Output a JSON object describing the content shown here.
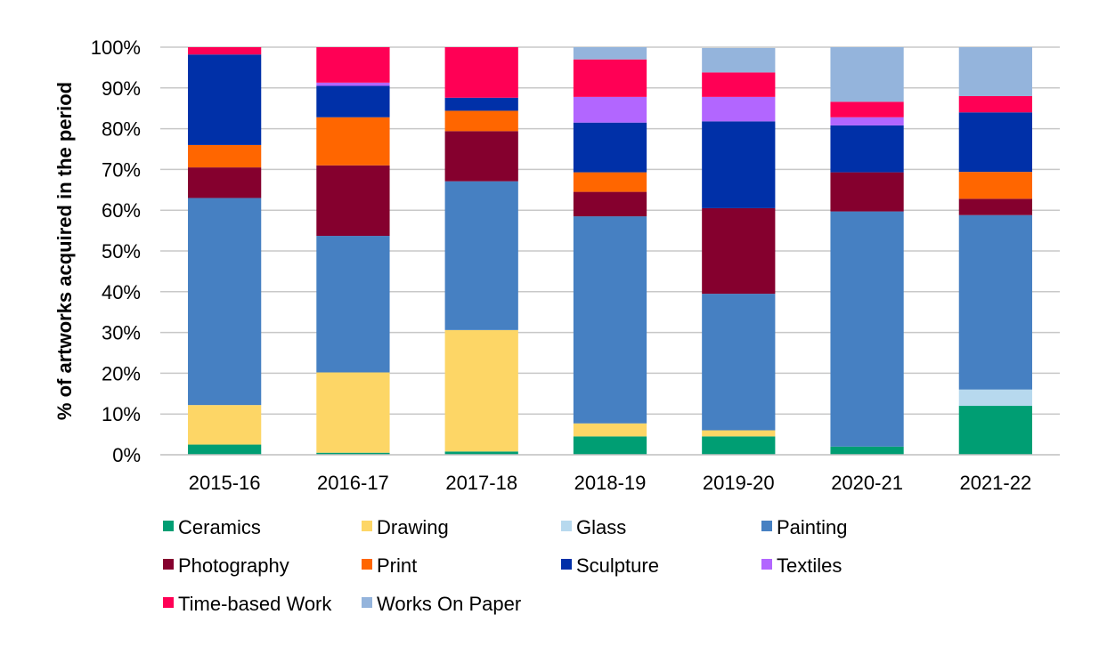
{
  "chart_data": {
    "type": "bar",
    "stacked": true,
    "ylabel": "% of artworks acquired in the period",
    "xlabel": "",
    "ylim": [
      0,
      100
    ],
    "yticks": [
      "0%",
      "10%",
      "20%",
      "30%",
      "40%",
      "50%",
      "60%",
      "70%",
      "80%",
      "90%",
      "100%"
    ],
    "grid": true,
    "legend_position": "bottom",
    "categories": [
      "2015-16",
      "2016-17",
      "2017-18",
      "2018-19",
      "2019-20",
      "2020-21",
      "2021-22"
    ],
    "series": [
      {
        "name": "Ceramics",
        "color": "#009E73",
        "values": [
          2.5,
          0.5,
          0.8,
          4.5,
          4.5,
          2.0,
          12.0
        ]
      },
      {
        "name": "Drawing",
        "color": "#FDD666",
        "values": [
          9.7,
          19.7,
          29.8,
          3.2,
          1.5,
          0.0,
          0.0
        ]
      },
      {
        "name": "Glass",
        "color": "#B7D9EE",
        "values": [
          0.0,
          0.0,
          0.0,
          0.0,
          0.0,
          0.0,
          4.0
        ]
      },
      {
        "name": "Painting",
        "color": "#4680C2",
        "values": [
          50.8,
          33.5,
          36.5,
          50.8,
          33.5,
          57.7,
          42.8
        ]
      },
      {
        "name": "Photography",
        "color": "#85002E",
        "values": [
          7.5,
          17.3,
          12.3,
          6.0,
          21.0,
          9.6,
          4.0
        ]
      },
      {
        "name": "Print",
        "color": "#FF6600",
        "values": [
          5.5,
          11.8,
          5.0,
          4.8,
          0.0,
          0.0,
          6.6
        ]
      },
      {
        "name": "Sculpture",
        "color": "#0030A8",
        "values": [
          22.2,
          7.7,
          3.2,
          12.2,
          21.3,
          11.5,
          14.6
        ]
      },
      {
        "name": "Textiles",
        "color": "#B266FF",
        "values": [
          0.0,
          0.8,
          0.0,
          6.3,
          6.0,
          2.0,
          0.0
        ]
      },
      {
        "name": "Time-based Work",
        "color": "#FF0055",
        "values": [
          1.8,
          8.7,
          12.4,
          9.2,
          6.0,
          3.8,
          4.0
        ]
      },
      {
        "name": "Works On Paper",
        "color": "#94B4DC",
        "values": [
          0.0,
          0.0,
          0.0,
          3.0,
          6.0,
          13.4,
          12.0
        ]
      }
    ]
  }
}
